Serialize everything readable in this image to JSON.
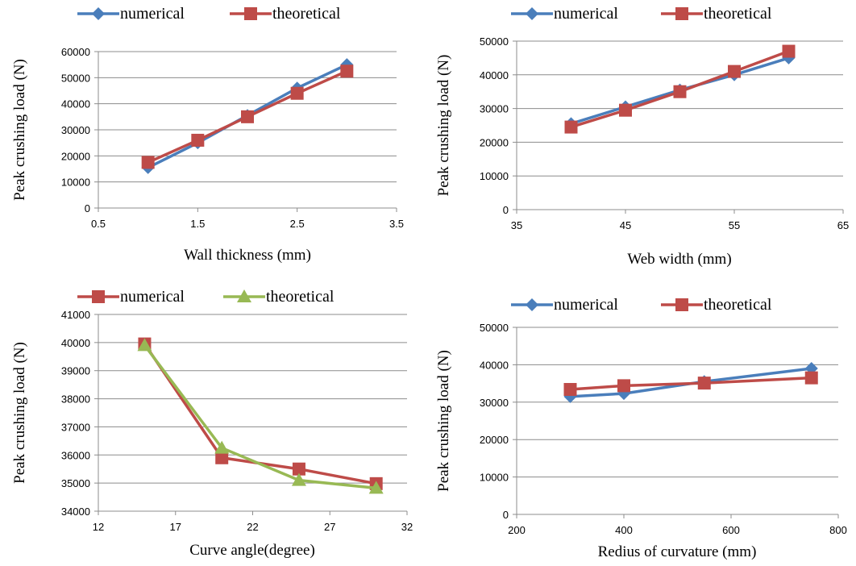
{
  "chart_data": [
    {
      "type": "scatter",
      "xlabel": "Wall thickness (mm)",
      "ylabel": "Peak crushing load (N)",
      "xlim": [
        0.5,
        3.5
      ],
      "ylim": [
        0,
        60000
      ],
      "xticks": [
        "0.5",
        "1.5",
        "2.5",
        "3.5"
      ],
      "xtick_values": [
        0.5,
        1.5,
        2.5,
        3.5
      ],
      "yticks": [
        "0",
        "10000",
        "20000",
        "30000",
        "40000",
        "50000",
        "60000"
      ],
      "ytick_values": [
        0,
        10000,
        20000,
        30000,
        40000,
        50000,
        60000
      ],
      "grid": "horizontal",
      "legend_position": "top",
      "series": [
        {
          "name": "numerical",
          "color": "#4a7ebb",
          "marker": "diamond",
          "x": [
            1,
            1.5,
            2,
            2.5,
            3
          ],
          "y": [
            15500,
            25000,
            35500,
            46000,
            55000
          ]
        },
        {
          "name": "theoretical",
          "color": "#be4b48",
          "marker": "square",
          "x": [
            1,
            1.5,
            2,
            2.5,
            3
          ],
          "y": [
            17500,
            26000,
            35000,
            44000,
            52500
          ]
        }
      ]
    },
    {
      "type": "scatter",
      "xlabel": "Web width (mm)",
      "ylabel": "Peak crushing load (N)",
      "xlim": [
        35,
        65
      ],
      "ylim": [
        0,
        50000
      ],
      "xticks": [
        "35",
        "45",
        "55",
        "65"
      ],
      "xtick_values": [
        35,
        45,
        55,
        65
      ],
      "yticks": [
        "0",
        "10000",
        "20000",
        "30000",
        "40000",
        "50000"
      ],
      "ytick_values": [
        0,
        10000,
        20000,
        30000,
        40000,
        50000
      ],
      "grid": "horizontal",
      "legend_position": "top",
      "series": [
        {
          "name": "numerical",
          "color": "#4a7ebb",
          "marker": "diamond",
          "x": [
            40,
            45,
            50,
            55,
            60
          ],
          "y": [
            25500,
            30500,
            35500,
            40000,
            45000
          ]
        },
        {
          "name": "theoretical",
          "color": "#be4b48",
          "marker": "square",
          "x": [
            40,
            45,
            50,
            55,
            60
          ],
          "y": [
            24500,
            29500,
            35000,
            41000,
            47000
          ]
        }
      ]
    },
    {
      "type": "scatter",
      "xlabel": "Curve angle(degree)",
      "ylabel": "Peak crushing load (N)",
      "xlim": [
        12,
        32
      ],
      "ylim": [
        34000,
        41000
      ],
      "xticks": [
        "12",
        "17",
        "22",
        "27",
        "32"
      ],
      "xtick_values": [
        12,
        17,
        22,
        27,
        32
      ],
      "yticks": [
        "34000",
        "35000",
        "36000",
        "37000",
        "38000",
        "39000",
        "40000",
        "41000"
      ],
      "ytick_values": [
        34000,
        35000,
        36000,
        37000,
        38000,
        39000,
        40000,
        41000
      ],
      "grid": "horizontal",
      "legend_position": "top",
      "series": [
        {
          "name": "numerical",
          "color": "#be4b48",
          "marker": "square",
          "x": [
            15,
            20,
            25,
            30
          ],
          "y": [
            39950,
            35900,
            35500,
            34980
          ]
        },
        {
          "name": "theoretical",
          "color": "#98b954",
          "marker": "triangle",
          "x": [
            15,
            20,
            25,
            30
          ],
          "y": [
            39900,
            36250,
            35100,
            34820
          ]
        }
      ]
    },
    {
      "type": "scatter",
      "xlabel": "Redius of curvature (mm)",
      "ylabel": "Peak crushing load (N)",
      "xlim": [
        200,
        800
      ],
      "ylim": [
        0,
        50000
      ],
      "xticks": [
        "200",
        "400",
        "600",
        "800"
      ],
      "xtick_values": [
        200,
        400,
        600,
        800
      ],
      "yticks": [
        "0",
        "10000",
        "20000",
        "30000",
        "40000",
        "50000"
      ],
      "ytick_values": [
        0,
        10000,
        20000,
        30000,
        40000,
        50000
      ],
      "grid": "horizontal",
      "legend_position": "top",
      "series": [
        {
          "name": "numerical",
          "color": "#4a7ebb",
          "marker": "diamond",
          "x": [
            300,
            400,
            550,
            750
          ],
          "y": [
            31500,
            32300,
            35500,
            39000
          ]
        },
        {
          "name": "theoretical",
          "color": "#be4b48",
          "marker": "square",
          "x": [
            300,
            400,
            550,
            750
          ],
          "y": [
            33400,
            34400,
            35100,
            36500
          ]
        }
      ]
    }
  ]
}
